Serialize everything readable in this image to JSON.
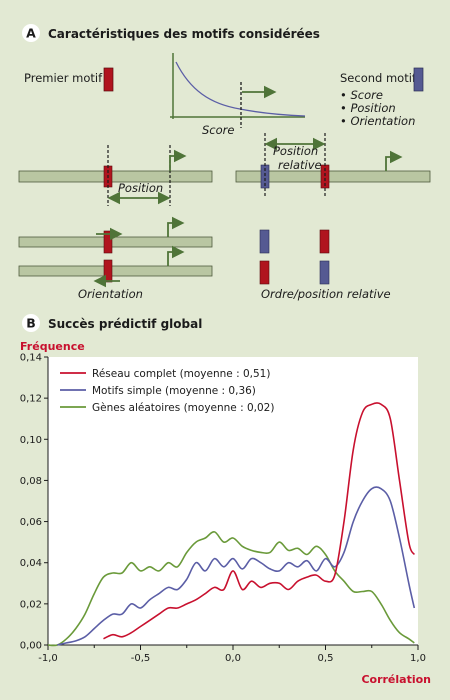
{
  "section_a": {
    "letter": "A",
    "title": "Caractéristiques des motifs considérées",
    "first_motif": "Premier motif",
    "score_label": "Score",
    "second_motif": "Second motif",
    "second_motif_items": [
      "Score",
      "Position",
      "Orientation"
    ],
    "position_label": "Position",
    "relative_position_label": [
      "Position",
      "relative"
    ],
    "orientation_label": "Orientation",
    "order_label": "Ordre/position relative"
  },
  "section_b": {
    "letter": "B",
    "title": "Succès prédictif global"
  },
  "colors": {
    "background": "#e2e9d3",
    "motif1": "#b0141e",
    "motif2": "#555a92",
    "dna": "#b9c6a2",
    "arrow": "#4f7438",
    "red_line": "#c8102e",
    "blue_line": "#5b5ea6",
    "green_line": "#6a9a3a",
    "ylabel": "#c8102e"
  },
  "chart_data": {
    "type": "line",
    "title": "",
    "xlabel": "Corrélation",
    "ylabel": "Fréquence",
    "xlim": [
      -1.0,
      1.0
    ],
    "ylim": [
      0,
      0.14
    ],
    "xticks": [
      "-1,0",
      "-0,5",
      "0,0",
      "0,5",
      "1,0"
    ],
    "yticks": [
      "0,00",
      "0,02",
      "0,04",
      "0,06",
      "0,08",
      "0,10",
      "0,12",
      "0,14"
    ],
    "legend_position": "top-left",
    "series": [
      {
        "name": "Réseau complet (moyenne : 0,51)",
        "color": "#c8102e",
        "x": [
          -0.7,
          -0.65,
          -0.6,
          -0.55,
          -0.5,
          -0.45,
          -0.4,
          -0.35,
          -0.3,
          -0.25,
          -0.2,
          -0.15,
          -0.1,
          -0.05,
          0.0,
          0.05,
          0.1,
          0.15,
          0.2,
          0.25,
          0.3,
          0.35,
          0.4,
          0.45,
          0.5,
          0.55,
          0.6,
          0.65,
          0.7,
          0.75,
          0.8,
          0.85,
          0.9,
          0.95,
          0.98
        ],
        "y": [
          0.003,
          0.005,
          0.004,
          0.006,
          0.009,
          0.012,
          0.015,
          0.018,
          0.018,
          0.02,
          0.022,
          0.025,
          0.028,
          0.027,
          0.036,
          0.027,
          0.031,
          0.028,
          0.03,
          0.03,
          0.027,
          0.031,
          0.033,
          0.034,
          0.031,
          0.034,
          0.06,
          0.095,
          0.113,
          0.117,
          0.117,
          0.11,
          0.08,
          0.05,
          0.044
        ]
      },
      {
        "name": "Motifs simple (moyenne : 0,36)",
        "color": "#5b5ea6",
        "x": [
          -0.95,
          -0.9,
          -0.85,
          -0.8,
          -0.75,
          -0.7,
          -0.65,
          -0.6,
          -0.55,
          -0.5,
          -0.45,
          -0.4,
          -0.35,
          -0.3,
          -0.25,
          -0.2,
          -0.15,
          -0.1,
          -0.05,
          0.0,
          0.05,
          0.1,
          0.15,
          0.2,
          0.25,
          0.3,
          0.35,
          0.4,
          0.45,
          0.5,
          0.55,
          0.6,
          0.65,
          0.7,
          0.75,
          0.8,
          0.85,
          0.9,
          0.95,
          0.98
        ],
        "y": [
          0.0,
          0.001,
          0.002,
          0.004,
          0.008,
          0.012,
          0.015,
          0.015,
          0.02,
          0.018,
          0.022,
          0.025,
          0.028,
          0.027,
          0.032,
          0.04,
          0.036,
          0.042,
          0.038,
          0.042,
          0.037,
          0.042,
          0.04,
          0.037,
          0.036,
          0.04,
          0.038,
          0.041,
          0.036,
          0.042,
          0.038,
          0.045,
          0.06,
          0.07,
          0.076,
          0.076,
          0.07,
          0.052,
          0.03,
          0.018
        ]
      },
      {
        "name": "Gènes aléatoires (moyenne : 0,02)",
        "color": "#6a9a3a",
        "x": [
          -1.0,
          -0.95,
          -0.9,
          -0.85,
          -0.8,
          -0.75,
          -0.7,
          -0.65,
          -0.6,
          -0.55,
          -0.5,
          -0.45,
          -0.4,
          -0.35,
          -0.3,
          -0.25,
          -0.2,
          -0.15,
          -0.1,
          -0.05,
          0.0,
          0.05,
          0.1,
          0.15,
          0.2,
          0.25,
          0.3,
          0.35,
          0.4,
          0.45,
          0.5,
          0.55,
          0.6,
          0.65,
          0.7,
          0.75,
          0.8,
          0.85,
          0.9,
          0.95,
          0.98
        ],
        "y": [
          0.0,
          0.0,
          0.003,
          0.008,
          0.015,
          0.025,
          0.033,
          0.035,
          0.035,
          0.04,
          0.036,
          0.038,
          0.036,
          0.04,
          0.038,
          0.045,
          0.05,
          0.052,
          0.055,
          0.05,
          0.052,
          0.048,
          0.046,
          0.045,
          0.045,
          0.05,
          0.046,
          0.047,
          0.044,
          0.048,
          0.044,
          0.036,
          0.031,
          0.026,
          0.026,
          0.026,
          0.02,
          0.012,
          0.006,
          0.003,
          0.001
        ]
      }
    ]
  }
}
